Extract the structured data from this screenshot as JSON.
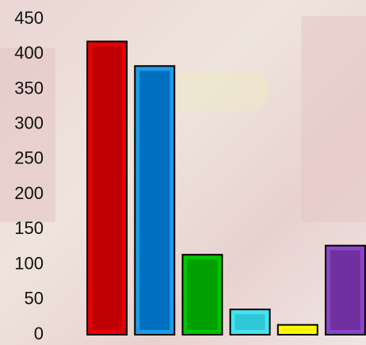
{
  "chart_data": {
    "type": "bar",
    "categories": [
      null,
      null,
      null,
      null,
      null,
      null
    ],
    "values": [
      418,
      383,
      114,
      36,
      14,
      127
    ],
    "colors": [
      "#e60000",
      "#1f9be6",
      "#00c400",
      "#45e3f0",
      "#ffff00",
      "#8a45c8"
    ],
    "inner_colors": [
      "#c00000",
      "#0070c0",
      "#00a000",
      "#30c8d8",
      "#f2f200",
      "#7030a0"
    ],
    "ylim": [
      0,
      450
    ],
    "yticks": [
      0,
      50,
      100,
      150,
      200,
      250,
      300,
      350,
      400,
      450
    ],
    "grid": false
  }
}
